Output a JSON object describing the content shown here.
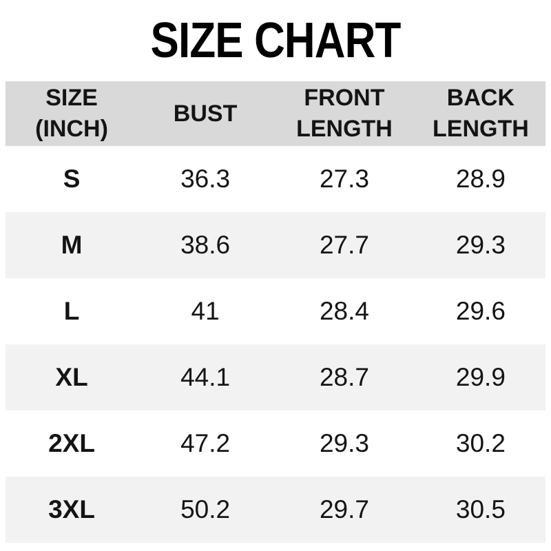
{
  "title": "SIZE CHART",
  "table": {
    "columns": [
      {
        "label": "SIZE (INCH)",
        "line1": "SIZE",
        "line2": "(INCH)"
      },
      {
        "label": "BUST",
        "line1": "BUST",
        "line2": ""
      },
      {
        "label": "FRONT LENGTH",
        "line1": "FRONT",
        "line2": "LENGTH"
      },
      {
        "label": "BACK LENGTH",
        "line1": "BACK",
        "line2": "LENGTH"
      }
    ],
    "rows": [
      {
        "size": "S",
        "bust": "36.3",
        "front_length": "27.3",
        "back_length": "28.9"
      },
      {
        "size": "M",
        "bust": "38.6",
        "front_length": "27.7",
        "back_length": "29.3"
      },
      {
        "size": "L",
        "bust": "41",
        "front_length": "28.4",
        "back_length": "29.6"
      },
      {
        "size": "XL",
        "bust": "44.1",
        "front_length": "28.7",
        "back_length": "29.9"
      },
      {
        "size": "2XL",
        "bust": "47.2",
        "front_length": "29.3",
        "back_length": "30.2"
      },
      {
        "size": "3XL",
        "bust": "50.2",
        "front_length": "29.7",
        "back_length": "30.5"
      }
    ]
  },
  "colors": {
    "header_bg": "#d9d9d9",
    "row_bg": "#ffffff",
    "row_alt_bg": "#f2f2f2",
    "text": "#141414",
    "title": "#000000",
    "page_bg": "#ffffff"
  },
  "chart_data": {
    "type": "table",
    "title": "SIZE CHART",
    "unit": "inch",
    "columns": [
      "SIZE (INCH)",
      "BUST",
      "FRONT LENGTH",
      "BACK LENGTH"
    ],
    "rows": [
      [
        "S",
        36.3,
        27.3,
        28.9
      ],
      [
        "M",
        38.6,
        27.7,
        29.3
      ],
      [
        "L",
        41,
        28.4,
        29.6
      ],
      [
        "XL",
        44.1,
        28.7,
        29.9
      ],
      [
        "2XL",
        47.2,
        29.3,
        30.2
      ],
      [
        "3XL",
        50.2,
        29.7,
        30.5
      ]
    ],
    "layout_hints": {
      "header_row_shaded": true,
      "zebra_striping": true,
      "all_cells_centered": true
    }
  }
}
